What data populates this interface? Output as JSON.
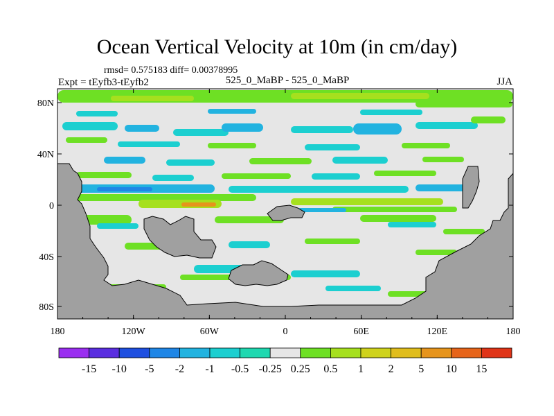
{
  "title": "Ocean Vertical Velocity at 10m (in cm/day)",
  "stats": "rmsd= 0.575183 diff= 0.00378995",
  "expt": "Expt = tEyfb3-tEyfb2",
  "center_label": "525_0_MaBP - 525_0_MaBP",
  "season": "JJA",
  "lat_ticks": [
    "80N",
    "40N",
    "0",
    "40S",
    "80S"
  ],
  "lon_ticks": [
    "180",
    "120W",
    "60W",
    "0",
    "60E",
    "120E",
    "180"
  ],
  "colorbar": {
    "colors": [
      "#9a2ef0",
      "#5a2ee0",
      "#1e4fe0",
      "#1f86e6",
      "#22b3e0",
      "#1ccfd0",
      "#1fd8b0",
      "#e6e6e6",
      "#6ee024",
      "#a6e01e",
      "#cfd31c",
      "#e0bd1c",
      "#e6941c",
      "#e6641a",
      "#e03418"
    ],
    "labels": [
      "-15",
      "-10",
      "-5",
      "-2",
      "-1",
      "-0.5",
      "-0.25",
      "0.25",
      "0.5",
      "1",
      "2",
      "5",
      "10",
      "15"
    ]
  },
  "colors": {
    "land": "#a0a0a0",
    "neutral": "#e6e6e6",
    "green": "#6ee024",
    "yellow_green": "#a6e01e",
    "cyan": "#22b3e0",
    "teal": "#1ccfd0",
    "blue": "#1f86e6",
    "orange": "#e6941c"
  }
}
